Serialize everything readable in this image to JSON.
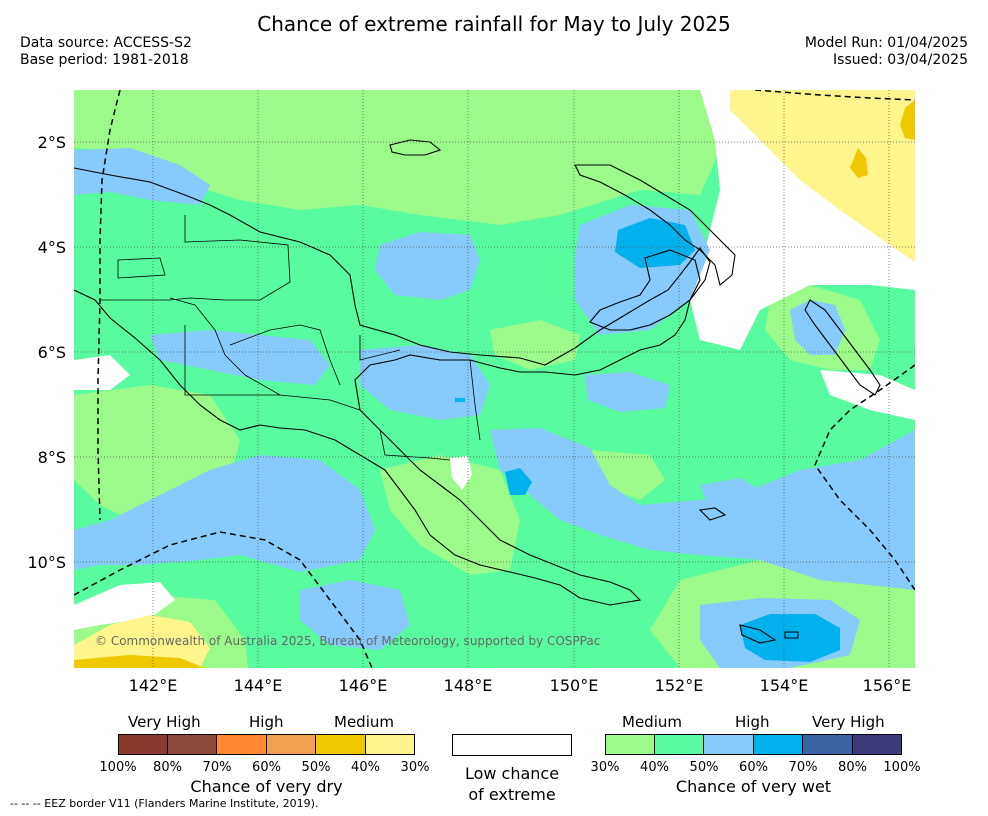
{
  "title": "Chance of extreme rainfall for May to July 2025",
  "data_source": "Data source: ACCESS-S2",
  "base_period": "Base period: 1981-2018",
  "model_run": "Model Run: 01/04/2025",
  "issued": "Issued: 03/04/2025",
  "copyright": "© Commonwealth of Australia 2025, Bureau of Meteorology, supported by COSPPac",
  "lat_labels": [
    "2°S",
    "4°S",
    "6°S",
    "8°S",
    "10°S"
  ],
  "lon_labels": [
    "142°E",
    "144°E",
    "146°E",
    "148°E",
    "150°E",
    "152°E",
    "154°E",
    "156°E"
  ],
  "map_extent": {
    "lon_min": 140.5,
    "lon_max": 156.5,
    "lat_min": -11.5,
    "lat_max": -1.0
  },
  "dry_legend": {
    "headers": [
      "Very High",
      "High",
      "Medium"
    ],
    "colors": [
      "#8b3a2f",
      "#8b4a3a",
      "#ff8830",
      "#f0a050",
      "#f0c800",
      "#fff58c"
    ],
    "ticks": [
      "100%",
      "80%",
      "70%",
      "60%",
      "50%",
      "40%",
      "30%"
    ],
    "caption": "Chance of very dry"
  },
  "low_legend": {
    "line1": "Low chance",
    "line2": "of extreme",
    "color": "#ffffff"
  },
  "wet_legend": {
    "headers": [
      "Medium",
      "High",
      "Very High"
    ],
    "colors": [
      "#9bfa8a",
      "#58fc9e",
      "#87cafc",
      "#00b1ee",
      "#3c64a4",
      "#3c3a78"
    ],
    "ticks": [
      "30%",
      "40%",
      "50%",
      "60%",
      "70%",
      "80%",
      "100%"
    ],
    "caption": "Chance of very wet"
  },
  "eez_note": "--  --  -- EEZ border V11 (Flanders Marine Institute, 2019)."
}
